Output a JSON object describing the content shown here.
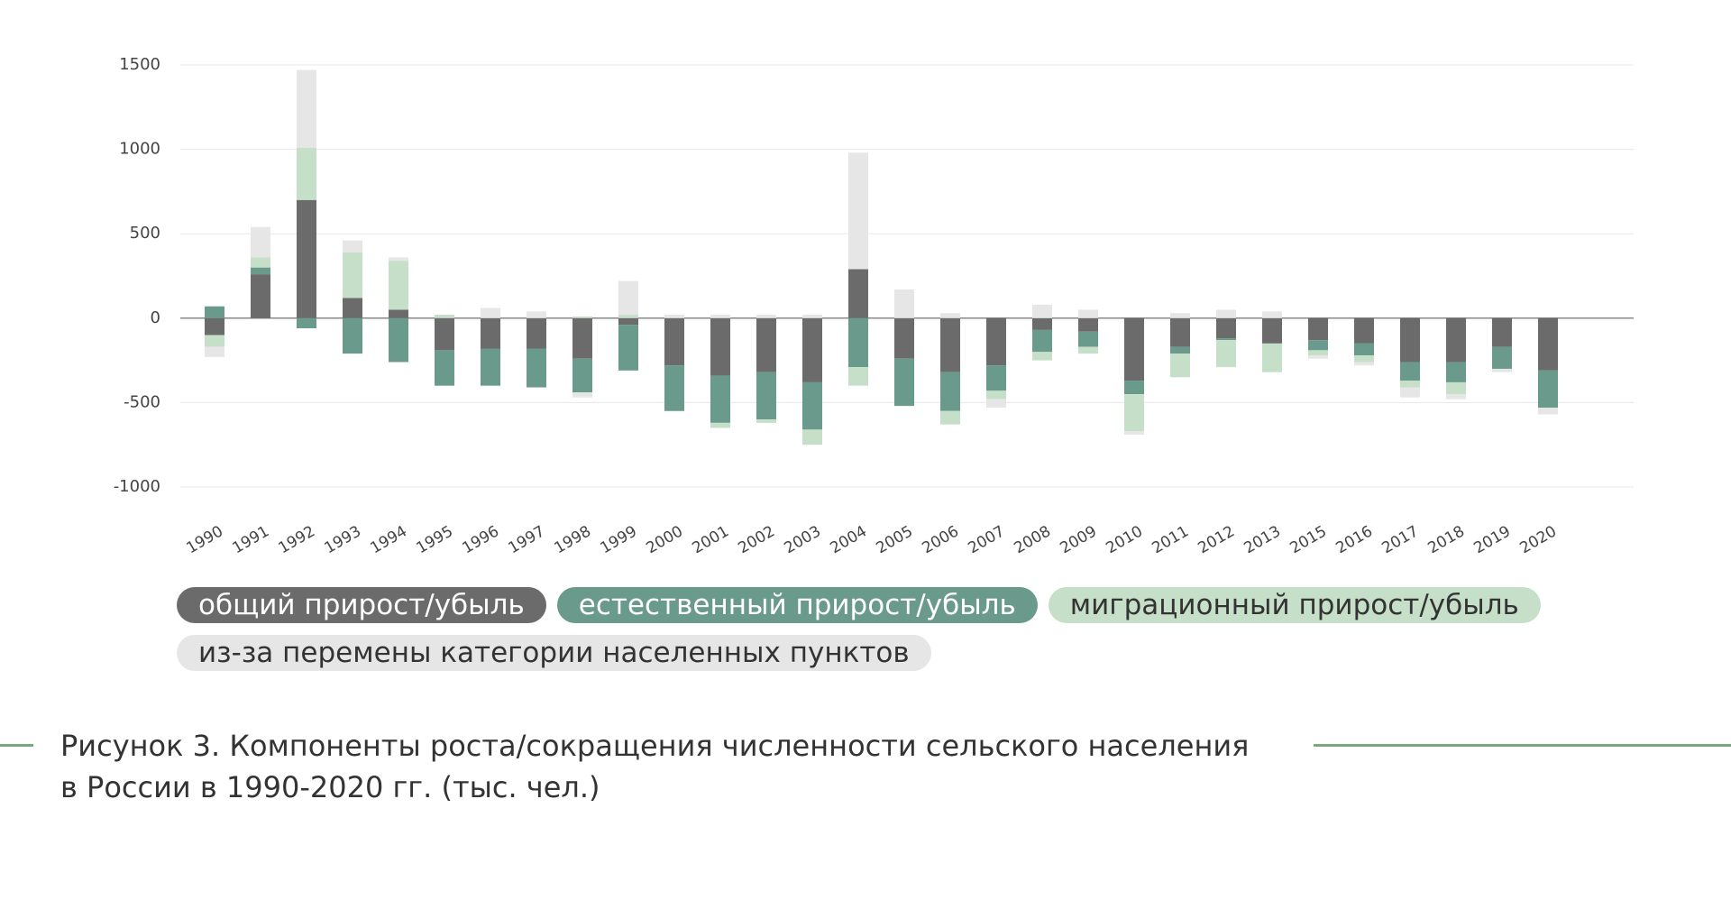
{
  "chart_data": {
    "type": "bar",
    "categories": [
      "1990",
      "1991",
      "1992",
      "1993",
      "1994",
      "1995",
      "1996",
      "1997",
      "1998",
      "1999",
      "2000",
      "2001",
      "2002",
      "2003",
      "2004",
      "2005",
      "2006",
      "2007",
      "2008",
      "2009",
      "2010",
      "2011",
      "2012",
      "2013",
      "2015",
      "2016",
      "2017",
      "2018",
      "2019",
      "2020"
    ],
    "series": [
      {
        "name": "общий прирост/убыль",
        "color": "#6b6b6b",
        "values": [
          -100,
          260,
          700,
          120,
          50,
          -190,
          -180,
          -180,
          -240,
          -40,
          -280,
          -340,
          -320,
          -380,
          290,
          -240,
          -320,
          -280,
          -70,
          -80,
          -370,
          -170,
          -120,
          -150,
          -130,
          -150,
          -260,
          -260,
          -170,
          -310
        ]
      },
      {
        "name": "естественный прирост/убыль",
        "color": "#6a9a8c",
        "values": [
          70,
          40,
          -60,
          -210,
          -260,
          -210,
          -220,
          -230,
          -200,
          -270,
          -270,
          -280,
          -280,
          -280,
          -290,
          -280,
          -230,
          -150,
          -130,
          -90,
          -80,
          -40,
          -10,
          0,
          -60,
          -70,
          -110,
          -120,
          -130,
          -220
        ]
      },
      {
        "name": "миграционный прирост/убыль",
        "color": "#c5dfc8",
        "values": [
          -70,
          60,
          310,
          270,
          290,
          20,
          0,
          0,
          10,
          20,
          0,
          -30,
          -20,
          -90,
          -110,
          0,
          -80,
          -50,
          -50,
          -40,
          -220,
          -140,
          -160,
          -170,
          -30,
          -40,
          -40,
          -70,
          0,
          0
        ]
      },
      {
        "name": "из-за перемены категории населенных пунктов",
        "color": "#e6e6e6",
        "values": [
          -60,
          180,
          460,
          70,
          20,
          0,
          60,
          40,
          -30,
          200,
          20,
          20,
          20,
          20,
          690,
          170,
          30,
          -50,
          80,
          50,
          -20,
          30,
          50,
          40,
          -20,
          -20,
          -60,
          -30,
          -20,
          -40
        ]
      }
    ],
    "ylim": [
      -1000,
      1500
    ],
    "yticks": [
      -1000,
      -500,
      0,
      500,
      1000,
      1500
    ],
    "grid": true,
    "caption_lines": [
      "Рисунок 3. Компоненты роста/сокращения численности сельского населения",
      "в России в 1990-2020 гг. (тыс. чел.)"
    ]
  }
}
